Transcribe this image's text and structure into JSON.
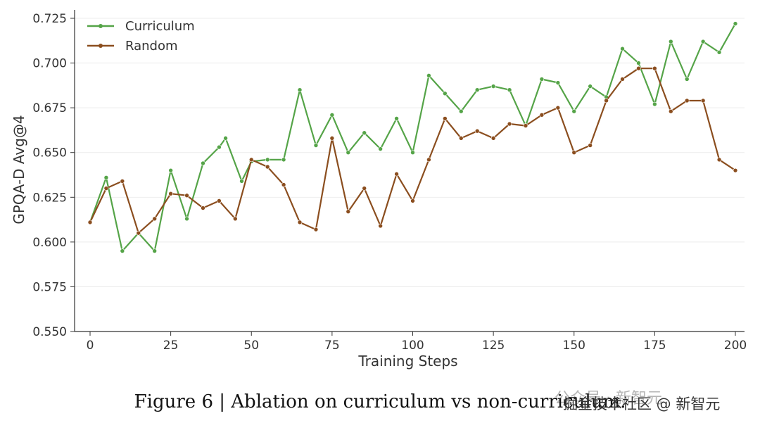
{
  "chart_data": {
    "type": "line",
    "xlabel": "Training Steps",
    "ylabel": "GPQA-D Avg@4",
    "xlim": [
      0,
      200
    ],
    "ylim": [
      0.55,
      0.725
    ],
    "x_ticks": [
      0,
      25,
      50,
      75,
      100,
      125,
      150,
      175,
      200
    ],
    "y_ticks": [
      0.55,
      0.575,
      0.6,
      0.625,
      0.65,
      0.675,
      0.7,
      0.725
    ],
    "y_tick_labels": [
      "0.550",
      "0.575",
      "0.600",
      "0.625",
      "0.650",
      "0.675",
      "0.700",
      "0.725"
    ],
    "grid": "horizontal",
    "legend_position": "top-left",
    "series": [
      {
        "name": "Curriculum",
        "color": "#55a448",
        "points": [
          [
            0,
            0.611
          ],
          [
            5,
            0.636
          ],
          [
            10,
            0.595
          ],
          [
            15,
            0.605
          ],
          [
            20,
            0.595
          ],
          [
            25,
            0.64
          ],
          [
            30,
            0.613
          ],
          [
            35,
            0.644
          ],
          [
            40,
            0.653
          ],
          [
            42,
            0.658
          ],
          [
            47,
            0.634
          ],
          [
            50,
            0.645
          ],
          [
            55,
            0.646
          ],
          [
            60,
            0.646
          ],
          [
            65,
            0.685
          ],
          [
            70,
            0.654
          ],
          [
            75,
            0.671
          ],
          [
            80,
            0.65
          ],
          [
            85,
            0.661
          ],
          [
            90,
            0.652
          ],
          [
            95,
            0.669
          ],
          [
            100,
            0.65
          ],
          [
            105,
            0.693
          ],
          [
            110,
            0.683
          ],
          [
            115,
            0.673
          ],
          [
            120,
            0.685
          ],
          [
            125,
            0.687
          ],
          [
            130,
            0.685
          ],
          [
            135,
            0.665
          ],
          [
            140,
            0.691
          ],
          [
            145,
            0.689
          ],
          [
            150,
            0.673
          ],
          [
            155,
            0.687
          ],
          [
            160,
            0.681
          ],
          [
            165,
            0.708
          ],
          [
            170,
            0.7
          ],
          [
            175,
            0.677
          ],
          [
            180,
            0.712
          ],
          [
            185,
            0.691
          ],
          [
            190,
            0.712
          ],
          [
            195,
            0.706
          ],
          [
            200,
            0.722
          ]
        ]
      },
      {
        "name": "Random",
        "color": "#8b4e1f",
        "points": [
          [
            0,
            0.611
          ],
          [
            5,
            0.63
          ],
          [
            10,
            0.634
          ],
          [
            15,
            0.605
          ],
          [
            20,
            0.613
          ],
          [
            25,
            0.627
          ],
          [
            30,
            0.626
          ],
          [
            35,
            0.619
          ],
          [
            40,
            0.623
          ],
          [
            45,
            0.613
          ],
          [
            50,
            0.646
          ],
          [
            55,
            0.642
          ],
          [
            60,
            0.632
          ],
          [
            65,
            0.611
          ],
          [
            70,
            0.607
          ],
          [
            75,
            0.658
          ],
          [
            80,
            0.617
          ],
          [
            85,
            0.63
          ],
          [
            90,
            0.609
          ],
          [
            95,
            0.638
          ],
          [
            100,
            0.623
          ],
          [
            105,
            0.646
          ],
          [
            110,
            0.669
          ],
          [
            115,
            0.658
          ],
          [
            120,
            0.662
          ],
          [
            125,
            0.658
          ],
          [
            130,
            0.666
          ],
          [
            135,
            0.665
          ],
          [
            140,
            0.671
          ],
          [
            145,
            0.675
          ],
          [
            150,
            0.65
          ],
          [
            155,
            0.654
          ],
          [
            160,
            0.679
          ],
          [
            165,
            0.691
          ],
          [
            170,
            0.697
          ],
          [
            175,
            0.697
          ],
          [
            180,
            0.673
          ],
          [
            185,
            0.679
          ],
          [
            190,
            0.679
          ],
          [
            195,
            0.646
          ],
          [
            200,
            0.64
          ]
        ]
      }
    ]
  },
  "caption": "Figure 6 | Ablation on curriculum vs non-curriculum.",
  "watermark": {
    "line1": "公众号 · 新智元",
    "line2": "掘金技术社区 @ 新智元"
  }
}
